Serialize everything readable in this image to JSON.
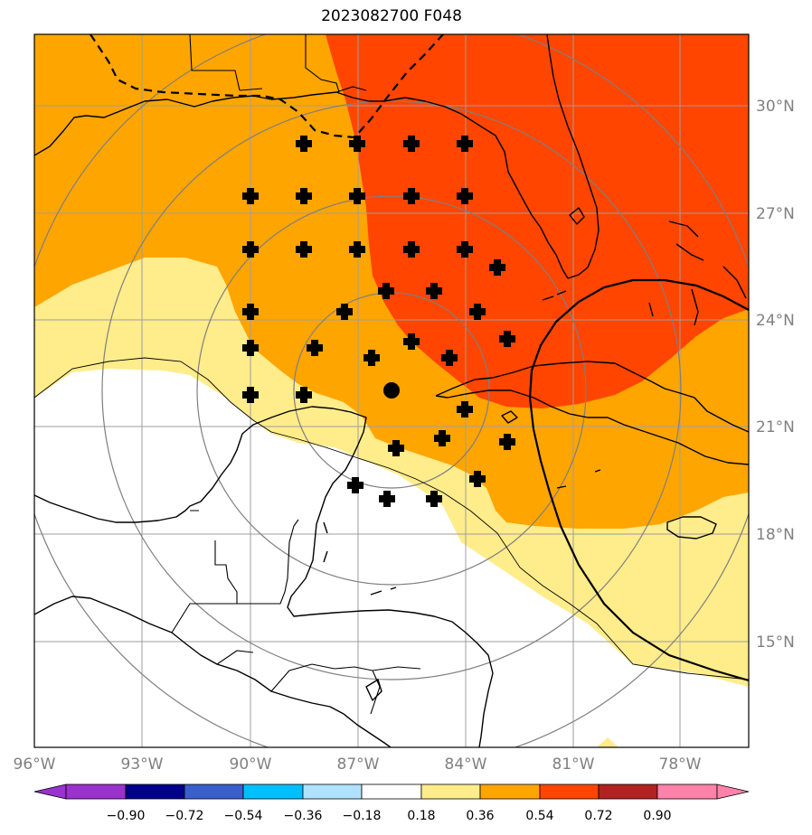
{
  "title": "2023082700 F048",
  "axes": {
    "lon_labels": [
      "96°W",
      "93°W",
      "90°W",
      "87°W",
      "84°W",
      "81°W",
      "78°W"
    ],
    "lat_labels": [
      "30°N",
      "27°N",
      "24°N",
      "21°N",
      "18°N",
      "15°N"
    ]
  },
  "colorbar": {
    "labels": [
      "−0.90",
      "−0.72",
      "−0.54",
      "−0.36",
      "−0.18",
      "0.18",
      "0.36",
      "0.54",
      "0.72",
      "0.90"
    ],
    "colors": [
      "#9a32cd",
      "#00008b",
      "#3a5fcd",
      "#00bfff",
      "#b0e2ff",
      "#ffffff",
      "#ffec8b",
      "#ffa500",
      "#ff4500",
      "#b22222",
      "#ff82ab"
    ]
  },
  "field_colors": {
    "white": "#ffffff",
    "light_yellow": "#ffec8b",
    "orange": "#ffa500",
    "red_orange": "#ff4500"
  },
  "markers": {
    "center": "filled-circle",
    "ensemble": "plus"
  }
}
